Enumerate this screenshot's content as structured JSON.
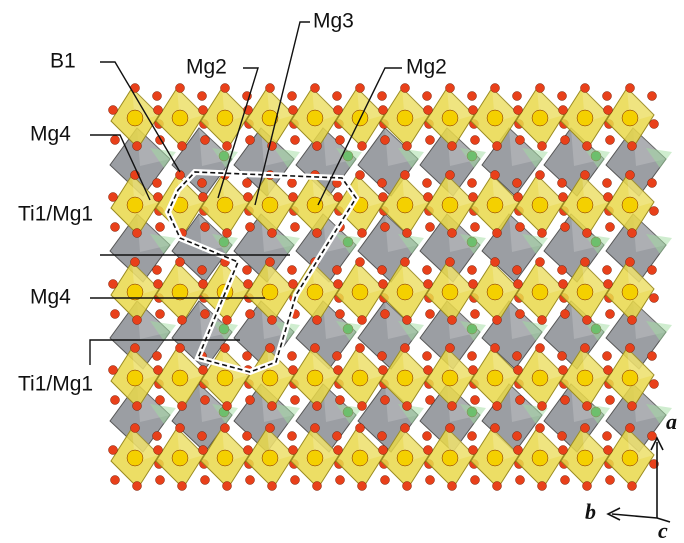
{
  "labels": [
    "B1",
    "Mg2",
    "Mg3",
    "Mg2",
    "Mg4",
    "Ti1/Mg1",
    "Mg4",
    "Ti1/Mg1"
  ],
  "axes": [
    "a",
    "b",
    "c"
  ]
}
